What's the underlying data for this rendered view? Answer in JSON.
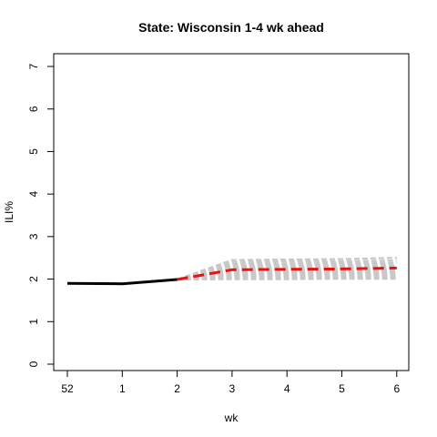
{
  "chart_data": {
    "type": "line",
    "title": "State: Wisconsin 1-4 wk ahead",
    "xlabel": "wk",
    "ylabel": "ILI%",
    "x_tick_labels": [
      "52",
      "1",
      "2",
      "3",
      "4",
      "5",
      "6"
    ],
    "y_ticks": [
      0,
      1,
      2,
      3,
      4,
      5,
      6,
      7
    ],
    "ylim": [
      0,
      7
    ],
    "grid": false,
    "series": [
      {
        "role": "observed",
        "color": "#000000",
        "style": "solid",
        "points": [
          [
            0,
            1.9
          ],
          [
            1,
            1.89
          ],
          [
            2,
            1.99
          ]
        ]
      },
      {
        "role": "forecast",
        "color": "#e8120f",
        "style": "dashed",
        "points": [
          [
            2,
            1.99
          ],
          [
            3,
            2.22
          ],
          [
            4,
            2.23
          ],
          [
            5,
            2.24
          ],
          [
            6,
            2.26
          ]
        ]
      }
    ],
    "ensemble": {
      "color": "#c8c8c8",
      "style": "dashed",
      "start": [
        2,
        1.99
      ],
      "members": [
        [
          2.45,
          2.46,
          2.47,
          2.5
        ],
        [
          2.4,
          2.42,
          2.42,
          2.44
        ],
        [
          2.36,
          2.37,
          2.38,
          2.39
        ],
        [
          2.32,
          2.33,
          2.34,
          2.35
        ],
        [
          2.28,
          2.29,
          2.3,
          2.31
        ],
        [
          2.25,
          2.26,
          2.27,
          2.28
        ],
        [
          2.22,
          2.23,
          2.24,
          2.25
        ],
        [
          2.19,
          2.2,
          2.2,
          2.21
        ],
        [
          2.16,
          2.17,
          2.17,
          2.18
        ],
        [
          2.13,
          2.14,
          2.14,
          2.15
        ],
        [
          2.1,
          2.11,
          2.11,
          2.12
        ],
        [
          2.07,
          2.08,
          2.08,
          2.09
        ],
        [
          2.04,
          2.04,
          2.05,
          2.05
        ],
        [
          2.0,
          2.0,
          2.01,
          2.01
        ]
      ]
    }
  }
}
